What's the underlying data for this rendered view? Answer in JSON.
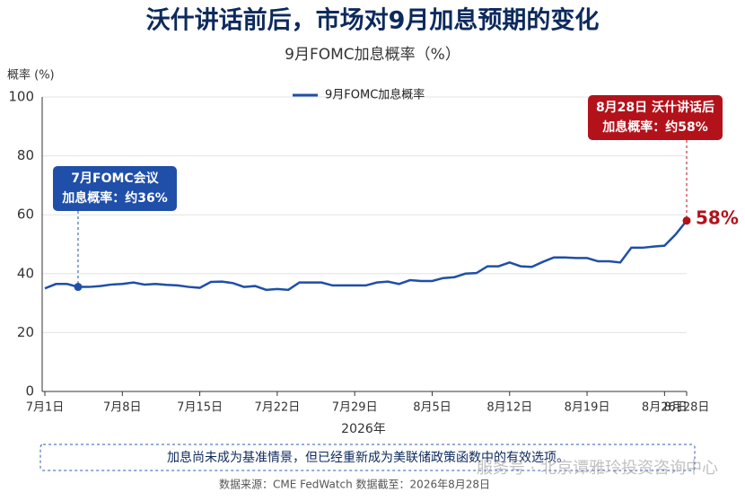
{
  "chart_data": {
    "type": "line",
    "title": "沃什讲话前后，市场对9月加息预期的变化",
    "subtitle": "9月FOMC加息概率（%）",
    "ylabel": "概率 (%)",
    "xlabel": "2026年",
    "x": [
      "2026-07-01",
      "2026-07-02",
      "2026-07-03",
      "2026-07-04",
      "2026-07-05",
      "2026-07-06",
      "2026-07-07",
      "2026-07-08",
      "2026-07-09",
      "2026-07-10",
      "2026-07-11",
      "2026-07-12",
      "2026-07-13",
      "2026-07-14",
      "2026-07-15",
      "2026-07-16",
      "2026-07-17",
      "2026-07-18",
      "2026-07-19",
      "2026-07-20",
      "2026-07-21",
      "2026-07-22",
      "2026-07-23",
      "2026-07-24",
      "2026-07-25",
      "2026-07-26",
      "2026-07-27",
      "2026-07-28",
      "2026-07-29",
      "2026-07-30",
      "2026-07-31",
      "2026-08-01",
      "2026-08-02",
      "2026-08-03",
      "2026-08-04",
      "2026-08-05",
      "2026-08-06",
      "2026-08-07",
      "2026-08-08",
      "2026-08-09",
      "2026-08-10",
      "2026-08-11",
      "2026-08-12",
      "2026-08-13",
      "2026-08-14",
      "2026-08-15",
      "2026-08-16",
      "2026-08-17",
      "2026-08-18",
      "2026-08-19",
      "2026-08-20",
      "2026-08-21",
      "2026-08-22",
      "2026-08-23",
      "2026-08-24",
      "2026-08-25",
      "2026-08-26",
      "2026-08-27",
      "2026-08-28"
    ],
    "series": [
      {
        "name": "9月FOMC加息概率",
        "color": "#1f4fa8",
        "values": [
          35,
          36.5,
          36.5,
          35.5,
          35.5,
          35.8,
          36.3,
          36.5,
          37,
          36.3,
          36.5,
          36.2,
          36,
          35.5,
          35.2,
          37.2,
          37.3,
          36.8,
          35.5,
          35.8,
          34.5,
          34.8,
          34.5,
          37,
          37,
          37,
          36,
          36,
          36,
          36,
          37,
          37.3,
          36.5,
          37.8,
          37.5,
          37.5,
          38.5,
          38.8,
          40,
          40.2,
          42.5,
          42.5,
          43.8,
          42.5,
          42.3,
          44,
          45.5,
          45.5,
          45.3,
          45.3,
          44.2,
          44.2,
          43.8,
          48.8,
          48.8,
          49.2,
          49.5,
          53.3,
          58
        ],
        "value_labels": [
          null,
          null,
          null,
          null,
          null,
          null,
          null,
          null,
          null,
          null,
          null,
          null,
          null,
          null,
          null,
          null,
          null,
          null,
          null,
          null,
          null,
          null,
          null,
          null,
          null,
          null,
          null,
          null,
          null,
          null,
          null,
          null,
          null,
          null,
          null,
          null,
          null,
          null,
          null,
          null,
          null,
          null,
          null,
          null,
          null,
          null,
          null,
          null,
          null,
          null,
          null,
          null,
          null,
          null,
          null,
          null,
          null,
          null,
          "58%"
        ]
      }
    ],
    "xlim": [
      "2026-07-01",
      "2026-08-28"
    ],
    "xticks": [
      {
        "value": "2026-07-01",
        "label": "7月1日"
      },
      {
        "value": "2026-07-08",
        "label": "7月8日"
      },
      {
        "value": "2026-07-15",
        "label": "7月15日"
      },
      {
        "value": "2026-07-22",
        "label": "7月22日"
      },
      {
        "value": "2026-07-29",
        "label": "7月29日"
      },
      {
        "value": "2026-08-05",
        "label": "8月5日"
      },
      {
        "value": "2026-08-12",
        "label": "8月12日"
      },
      {
        "value": "2026-08-19",
        "label": "8月19日"
      },
      {
        "value": "2026-08-26",
        "label": "8月26日"
      },
      {
        "value": "2026-08-28",
        "label": "8月28日"
      }
    ],
    "ylim": [
      0,
      100
    ],
    "yticks": [
      0,
      20,
      40,
      60,
      80,
      100
    ],
    "grid": true,
    "legend": "top",
    "annotations": [
      {
        "x": "2026-07-04",
        "lines": [
          "7月FOMC会议",
          "加息概率：约36%"
        ],
        "color": "#1f4fa8"
      },
      {
        "x": "2026-08-28",
        "lines": [
          "8月28日 沃什讲话后",
          "加息概率：约58%"
        ],
        "color": "#b3121b"
      }
    ],
    "note": "加息尚未成为基准情景，但已经重新成为美联储政策函数中的有效选项。",
    "source": "数据来源：CME FedWatch    数据截至：2026年8月28日",
    "watermark": "服务号 · 北京谭雅玲投资咨询中心"
  }
}
